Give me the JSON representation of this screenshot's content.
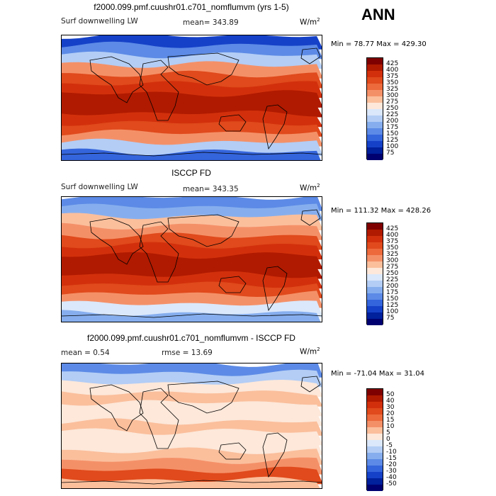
{
  "season": "ANN",
  "units_base": "W/m",
  "units_exp": "2",
  "panels": [
    {
      "title": "f2000.099.pmf.cuushr01.c701_nomflumvm (yrs 1-5)",
      "left_label": "Surf downwelling LW",
      "stat_label": "mean= 343.89",
      "stat2_label": "",
      "minmax": "Min =  78.77 Max = 429.30",
      "colorbar_labels": [
        "425",
        "400",
        "375",
        "350",
        "325",
        "300",
        "275",
        "250",
        "225",
        "200",
        "175",
        "150",
        "125",
        "100",
        "75"
      ]
    },
    {
      "title": "ISCCP FD",
      "left_label": "Surf downwelling LW",
      "stat_label": "mean= 343.35",
      "stat2_label": "",
      "minmax": "Min = 111.32 Max = 428.26",
      "colorbar_labels": [
        "425",
        "400",
        "375",
        "350",
        "325",
        "300",
        "275",
        "250",
        "225",
        "200",
        "175",
        "150",
        "125",
        "100",
        "75"
      ]
    },
    {
      "title": "f2000.099.pmf.cuushr01.c701_nomflumvm - ISCCP FD",
      "left_label": "mean =    0.54",
      "stat_label": "rmse =   13.69",
      "stat2_label": "",
      "minmax": "Min = -71.04 Max =   31.04",
      "colorbar_labels": [
        "50",
        "40",
        "30",
        "20",
        "15",
        "10",
        "5",
        "0",
        "-5",
        "-10",
        "-15",
        "-20",
        "-30",
        "-40",
        "-50"
      ]
    }
  ],
  "colors": {
    "abs_scale": [
      "#7f0000",
      "#b01a00",
      "#d2300c",
      "#e04a1c",
      "#ec6a3c",
      "#f49068",
      "#fbbf9c",
      "#fde8da",
      "#dbe8fb",
      "#b3cdf5",
      "#86aeee",
      "#5c8ae6",
      "#3565dc",
      "#1541c8",
      "#00209c",
      "#000070"
    ],
    "diff_scale": [
      "#7f0000",
      "#b01a00",
      "#d2300c",
      "#e04a1c",
      "#ec6a3c",
      "#f49068",
      "#fbbf9c",
      "#fde8da",
      "#dbe8fb",
      "#b3cdf5",
      "#86aeee",
      "#5c8ae6",
      "#3565dc",
      "#1541c8",
      "#00209c",
      "#000070"
    ],
    "map_bands_p1": [
      "#1541c8",
      "#5c8ae6",
      "#b3cdf5",
      "#f49068",
      "#e04a1c",
      "#d2300c",
      "#b01a00",
      "#b01a00",
      "#d2300c",
      "#e04a1c",
      "#f49068",
      "#b3cdf5",
      "#3565dc"
    ],
    "map_bands_p2": [
      "#5c8ae6",
      "#86aeee",
      "#fbbf9c",
      "#f49068",
      "#e04a1c",
      "#d2300c",
      "#b01a00",
      "#b01a00",
      "#d2300c",
      "#e04a1c",
      "#f49068",
      "#dbe8fb",
      "#86aeee"
    ],
    "map_bands_p3": [
      "#5c8ae6",
      "#b3cdf5",
      "#fde8da",
      "#fbbf9c",
      "#fde8da",
      "#fde8da",
      "#fbbf9c",
      "#fde8da",
      "#fde8da",
      "#fbbf9c",
      "#f49068",
      "#e04a1c",
      "#fbbf9c"
    ]
  },
  "chart_data": [
    {
      "type": "heatmap",
      "title": "f2000.099.pmf.cuushr01.c701_nomflumvm (yrs 1-5)",
      "variable": "Surf downwelling LW",
      "units": "W/m2",
      "mean": 343.89,
      "min": 78.77,
      "max": 429.3,
      "contour_levels": [
        75,
        100,
        125,
        150,
        175,
        200,
        225,
        250,
        275,
        300,
        325,
        350,
        375,
        400,
        425
      ]
    },
    {
      "type": "heatmap",
      "title": "ISCCP FD",
      "variable": "Surf downwelling LW",
      "units": "W/m2",
      "mean": 343.35,
      "min": 111.32,
      "max": 428.26,
      "contour_levels": [
        75,
        100,
        125,
        150,
        175,
        200,
        225,
        250,
        275,
        300,
        325,
        350,
        375,
        400,
        425
      ]
    },
    {
      "type": "heatmap",
      "title": "f2000.099.pmf.cuushr01.c701_nomflumvm - ISCCP FD",
      "units": "W/m2",
      "mean": 0.54,
      "rmse": 13.69,
      "min": -71.04,
      "max": 31.04,
      "contour_levels": [
        -50,
        -40,
        -30,
        -20,
        -15,
        -10,
        -5,
        0,
        5,
        10,
        15,
        20,
        30,
        40,
        50
      ]
    }
  ]
}
